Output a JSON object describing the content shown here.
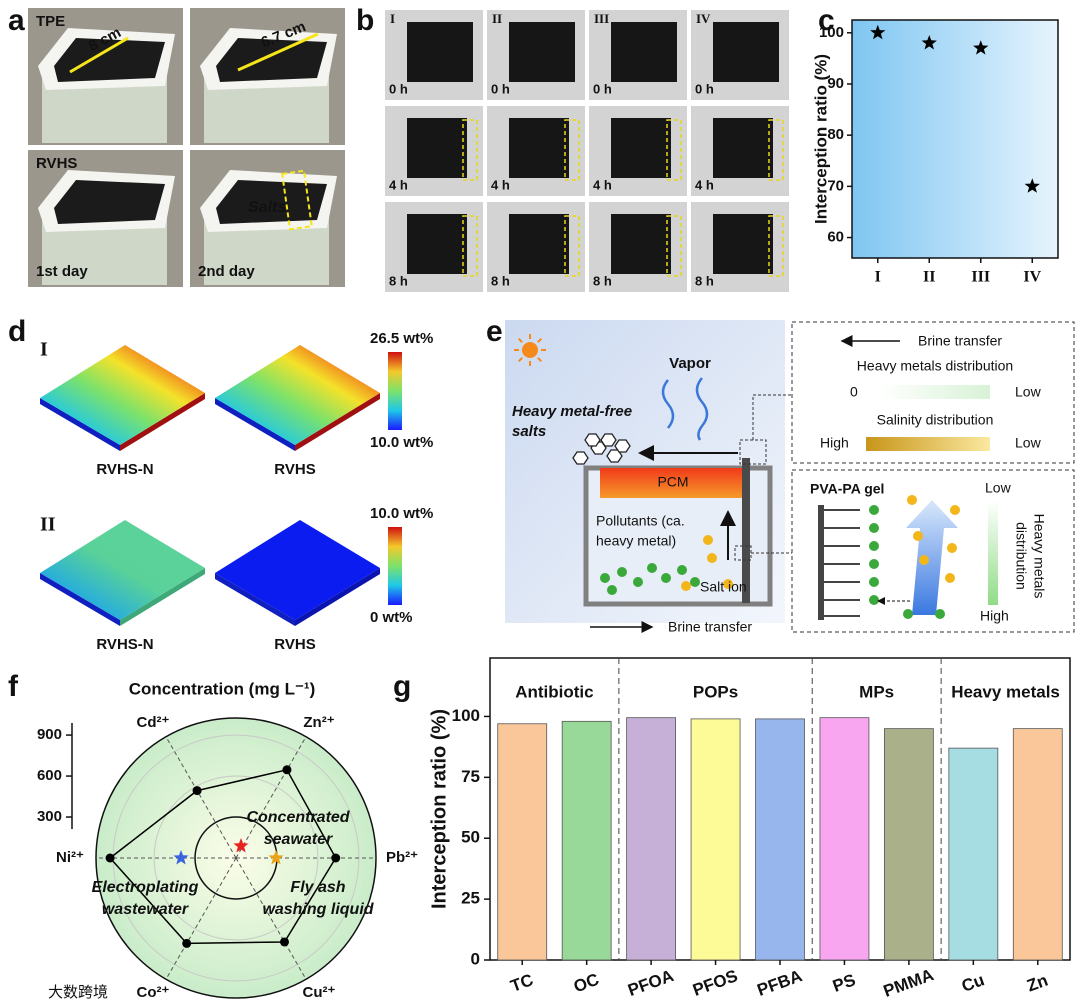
{
  "panel_labels": [
    "a",
    "b",
    "c",
    "d",
    "e",
    "f",
    "g"
  ],
  "panel_a": {
    "tpe": "TPE",
    "width1": "8 cm",
    "width2": "6.7 cm",
    "rvhs": "RVHS",
    "salts": "Salts",
    "day1": "1st day",
    "day2": "2nd day"
  },
  "panel_b": {
    "columns": [
      "I",
      "II",
      "III",
      "IV"
    ],
    "rows": [
      "0 h",
      "4 h",
      "8 h"
    ]
  },
  "panel_d": {
    "rows": [
      {
        "label": "I",
        "max": "26.5 wt%",
        "min": "10.0 wt%"
      },
      {
        "label": "II",
        "max": "10.0 wt%",
        "min": "0 wt%"
      }
    ],
    "samples": [
      "RVHS-N",
      "RVHS"
    ]
  },
  "panel_e": {
    "vapor": "Vapor",
    "salts": [
      "Heavy metal-free",
      "salts"
    ],
    "pcm": "PCM",
    "pollutants": [
      "Pollutants (ca.",
      "heavy metal)"
    ],
    "salt_ion": "Salt ion",
    "brine_bottom": "Brine transfer",
    "legend": {
      "brine": "Brine transfer",
      "heavy_metals": "Heavy metals distribution",
      "hm_low_end": "0",
      "hm_high_end": "Low",
      "salinity": "Salinity distribution",
      "sal_high": "High",
      "sal_low": "Low"
    },
    "gel": {
      "title": "PVA-PA gel",
      "low": "Low",
      "high": "High",
      "axis": [
        "Heavy metals",
        "distribution"
      ]
    }
  },
  "watermark": "大数跨境",
  "chart_data": [
    {
      "type": "scatter",
      "y_label": "Interception ratio (%)",
      "categories": [
        "I",
        "II",
        "III",
        "IV"
      ],
      "values": [
        100,
        98,
        97,
        70
      ],
      "color": "#000000",
      "marker": "star",
      "ylim": [
        56,
        102.5
      ],
      "yticks": [
        60,
        70,
        80,
        90,
        100
      ]
    },
    {
      "type": "radar",
      "title": "Concentration (mg L⁻¹)",
      "axes": [
        "Cd²⁺",
        "Zn²⁺",
        "Pb²⁺",
        "Cu²⁺",
        "Co²⁺",
        "Ni²⁺"
      ],
      "values": [
        570,
        746,
        730,
        710,
        722,
        922
      ],
      "rlim": [
        0,
        1025
      ],
      "rticks": [
        300,
        600,
        900
      ],
      "color": "#000000",
      "annotations": [
        {
          "lines": [
            "Concentrated",
            "seawater"
          ],
          "color": "#e8231f"
        },
        {
          "lines": [
            "Electroplating",
            "wastewater"
          ],
          "color": "#3b63e0"
        },
        {
          "lines": [
            "Fly ash",
            "washing liquid"
          ],
          "color": "#e8a317"
        }
      ]
    },
    {
      "type": "bar",
      "y_label": "Interception ratio (%)",
      "categories": [
        "TC",
        "OC",
        "PFOA",
        "PFOS",
        "PFBA",
        "PS",
        "PMMA",
        "Cu",
        "Zn"
      ],
      "values": [
        97,
        98,
        99.5,
        99,
        99,
        99.5,
        95,
        87,
        95
      ],
      "colors": [
        "#f9c79a",
        "#98d898",
        "#c7b0d8",
        "#fdfb98",
        "#98b6ee",
        "#f8a6ef",
        "#a9b08a",
        "#a6dde2",
        "#f9c79a"
      ],
      "groups": [
        {
          "name": "Antibiotic",
          "size": 2
        },
        {
          "name": "POPs",
          "size": 3
        },
        {
          "name": "MPs",
          "size": 2
        },
        {
          "name": "Heavy metals",
          "size": 2
        }
      ],
      "ylim": [
        0,
        124
      ],
      "yticks": [
        0,
        25,
        50,
        75,
        100
      ]
    }
  ]
}
